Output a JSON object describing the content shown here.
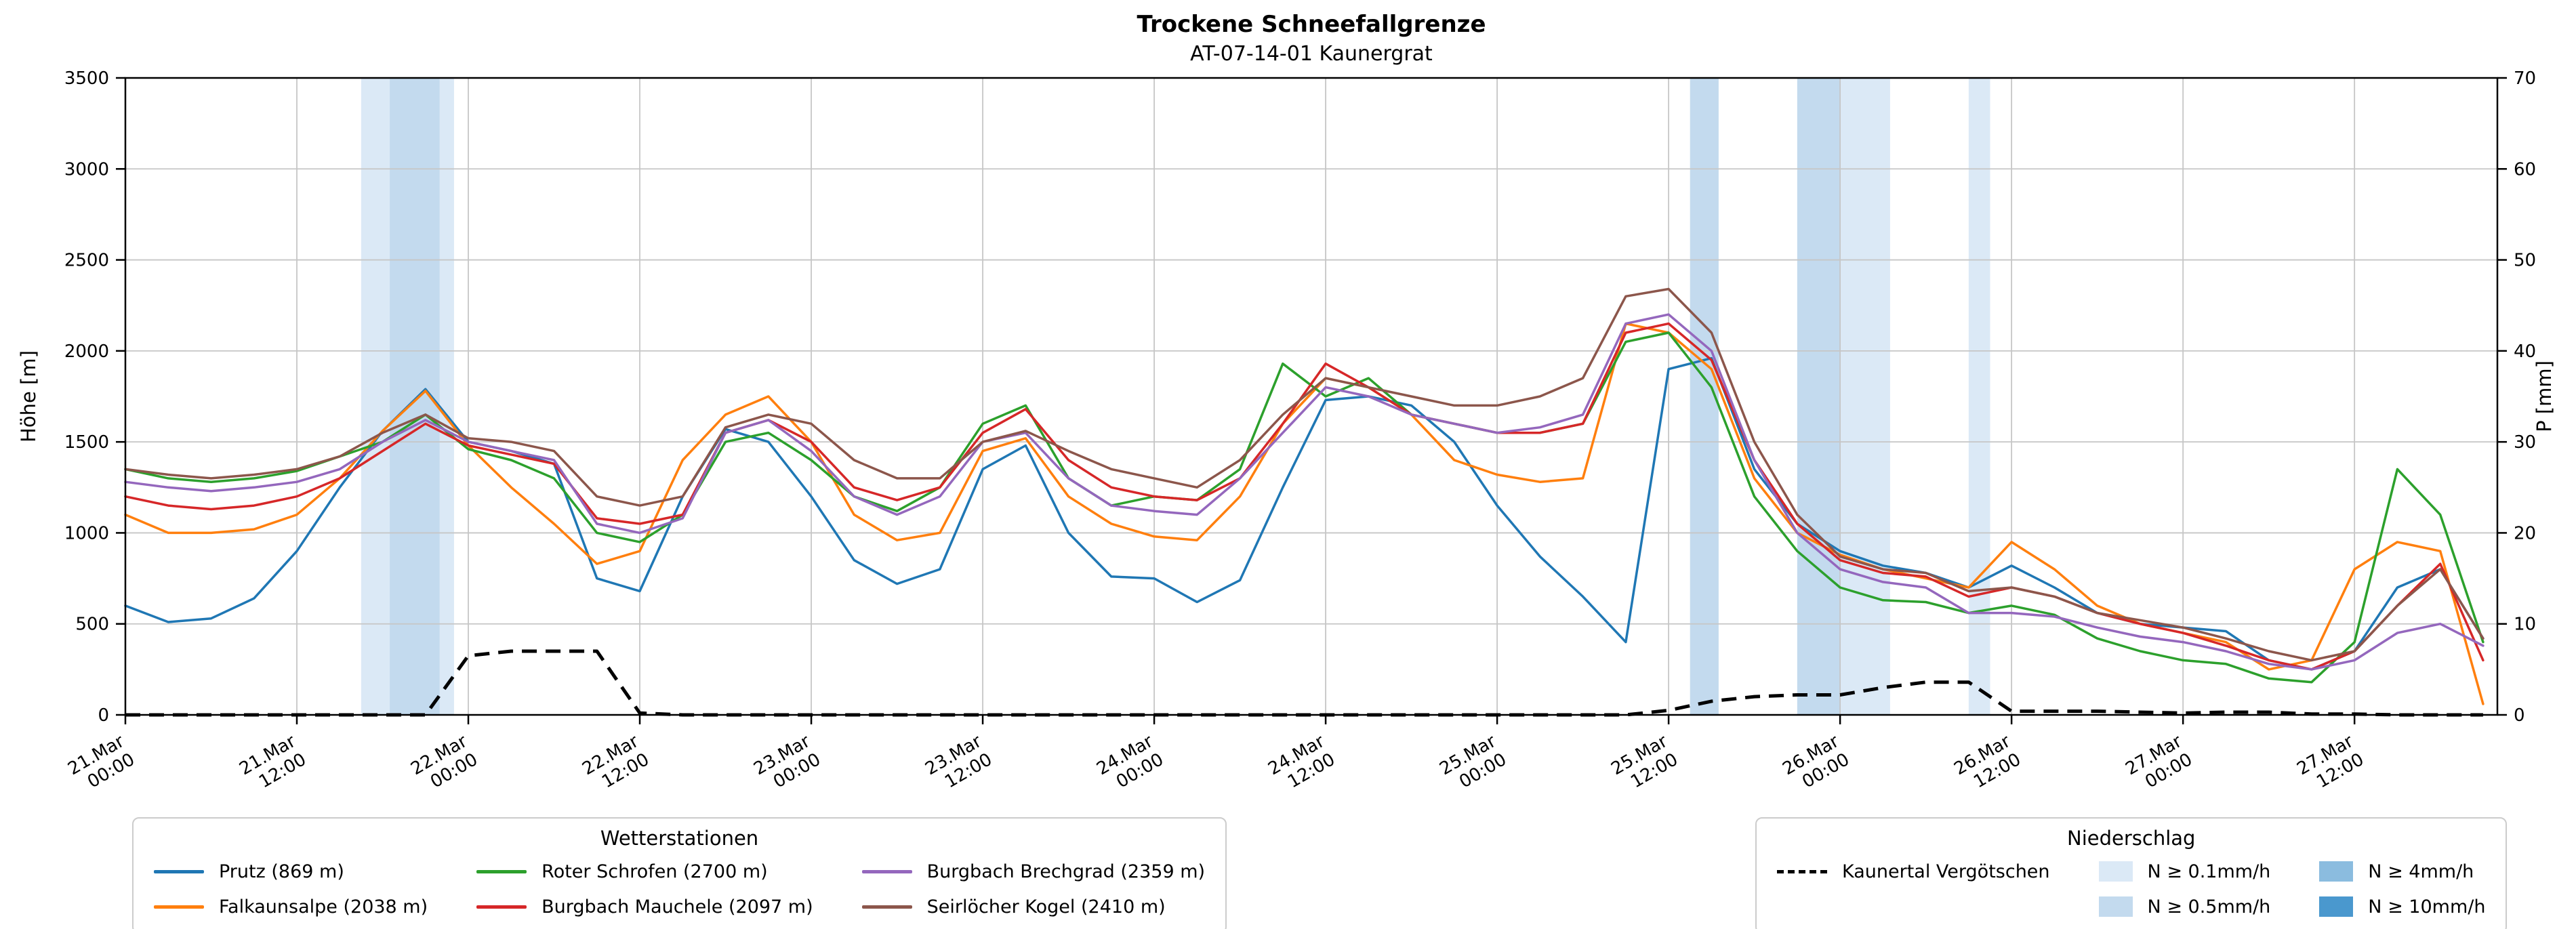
{
  "title": "Trockene Schneefallgrenze",
  "subtitle": "AT-07-14-01 Kaunergrat",
  "chart_data": {
    "type": "line",
    "title": "Trockene Schneefallgrenze",
    "subtitle": "AT-07-14-01 Kaunergrat",
    "ylabel_left": "Höhe [m]",
    "ylabel_right": "P [mm]",
    "xlim": [
      0,
      166
    ],
    "ylim_left": [
      0,
      3500
    ],
    "ylim_right": [
      0,
      70
    ],
    "y_ticks_left": [
      0,
      500,
      1000,
      1500,
      2000,
      2500,
      3000,
      3500
    ],
    "y_ticks_right": [
      0,
      10,
      20,
      30,
      40,
      50,
      60,
      70
    ],
    "x_unit": "hours since 21.Mar 00:00",
    "x_ticks": [
      {
        "t": 0,
        "date": "21.Mar",
        "time": "00:00"
      },
      {
        "t": 12,
        "date": "21.Mar",
        "time": "12:00"
      },
      {
        "t": 24,
        "date": "22.Mar",
        "time": "00:00"
      },
      {
        "t": 36,
        "date": "22.Mar",
        "time": "12:00"
      },
      {
        "t": 48,
        "date": "23.Mar",
        "time": "00:00"
      },
      {
        "t": 60,
        "date": "23.Mar",
        "time": "12:00"
      },
      {
        "t": 72,
        "date": "24.Mar",
        "time": "00:00"
      },
      {
        "t": 84,
        "date": "24.Mar",
        "time": "12:00"
      },
      {
        "t": 96,
        "date": "25.Mar",
        "time": "00:00"
      },
      {
        "t": 108,
        "date": "25.Mar",
        "time": "12:00"
      },
      {
        "t": 120,
        "date": "26.Mar",
        "time": "00:00"
      },
      {
        "t": 132,
        "date": "26.Mar",
        "time": "12:00"
      },
      {
        "t": 144,
        "date": "27.Mar",
        "time": "00:00"
      },
      {
        "t": 156,
        "date": "27.Mar",
        "time": "12:00"
      }
    ],
    "x": [
      0,
      3,
      6,
      9,
      12,
      15,
      18,
      21,
      24,
      27,
      30,
      33,
      36,
      39,
      42,
      45,
      48,
      51,
      54,
      57,
      60,
      63,
      66,
      69,
      72,
      75,
      78,
      81,
      84,
      87,
      90,
      93,
      96,
      99,
      102,
      105,
      108,
      111,
      114,
      117,
      120,
      123,
      126,
      129,
      132,
      135,
      138,
      141,
      144,
      147,
      150,
      153,
      156,
      159,
      162,
      165
    ],
    "series": [
      {
        "id": "prutz",
        "name": "Prutz (869 m)",
        "color": "#1f77b4",
        "axis": "left",
        "values": [
          600,
          510,
          530,
          640,
          900,
          1250,
          1560,
          1790,
          1500,
          1450,
          1380,
          750,
          680,
          1200,
          1570,
          1500,
          1200,
          850,
          720,
          800,
          1350,
          1480,
          1000,
          760,
          750,
          620,
          740,
          1250,
          1730,
          1750,
          1700,
          1500,
          1150,
          870,
          650,
          400,
          1900,
          1960,
          1350,
          1050,
          900,
          820,
          780,
          700,
          820,
          700,
          560,
          500,
          480,
          460,
          300,
          250,
          350,
          700,
          800,
          420
        ]
      },
      {
        "id": "falkaunsalpe",
        "name": "Falkaunsalpe (2038 m)",
        "color": "#ff7f0e",
        "axis": "left",
        "values": [
          1100,
          1000,
          1000,
          1020,
          1100,
          1300,
          1560,
          1780,
          1480,
          1250,
          1050,
          830,
          900,
          1400,
          1650,
          1750,
          1500,
          1100,
          960,
          1000,
          1450,
          1520,
          1200,
          1050,
          980,
          960,
          1200,
          1600,
          1850,
          1800,
          1650,
          1400,
          1320,
          1280,
          1300,
          2150,
          2100,
          1900,
          1300,
          1000,
          880,
          800,
          750,
          700,
          950,
          800,
          600,
          500,
          450,
          400,
          250,
          300,
          800,
          950,
          900,
          60
        ]
      },
      {
        "id": "roter-schrofen",
        "name": "Roter Schrofen (2700 m)",
        "color": "#2ca02c",
        "axis": "left",
        "values": [
          1350,
          1300,
          1280,
          1300,
          1340,
          1420,
          1500,
          1650,
          1460,
          1400,
          1300,
          1000,
          950,
          1100,
          1500,
          1550,
          1400,
          1200,
          1120,
          1250,
          1600,
          1700,
          1300,
          1150,
          1200,
          1180,
          1350,
          1930,
          1750,
          1850,
          1650,
          1600,
          1550,
          1550,
          1600,
          2050,
          2100,
          1800,
          1200,
          900,
          700,
          630,
          620,
          560,
          600,
          550,
          420,
          350,
          300,
          280,
          200,
          180,
          400,
          1350,
          1100,
          400
        ]
      },
      {
        "id": "burgbach-mauchele",
        "name": "Burgbach Mauchele (2097 m)",
        "color": "#d62728",
        "axis": "left",
        "values": [
          1200,
          1150,
          1130,
          1150,
          1200,
          1300,
          1450,
          1600,
          1480,
          1430,
          1380,
          1080,
          1050,
          1100,
          1550,
          1620,
          1500,
          1250,
          1180,
          1250,
          1550,
          1680,
          1400,
          1250,
          1200,
          1180,
          1300,
          1600,
          1930,
          1800,
          1650,
          1600,
          1550,
          1550,
          1600,
          2100,
          2150,
          1950,
          1400,
          1050,
          850,
          780,
          760,
          650,
          700,
          650,
          560,
          500,
          450,
          380,
          300,
          250,
          350,
          600,
          830,
          300
        ]
      },
      {
        "id": "burgbach-brechgrad",
        "name": "Burgbach Brechgrad (2359 m)",
        "color": "#9467bd",
        "axis": "left",
        "values": [
          1280,
          1250,
          1230,
          1250,
          1280,
          1350,
          1500,
          1620,
          1500,
          1450,
          1400,
          1050,
          1000,
          1080,
          1550,
          1620,
          1450,
          1200,
          1100,
          1200,
          1500,
          1550,
          1300,
          1150,
          1120,
          1100,
          1300,
          1550,
          1800,
          1750,
          1650,
          1600,
          1550,
          1580,
          1650,
          2150,
          2200,
          2000,
          1400,
          1000,
          800,
          730,
          700,
          560,
          560,
          540,
          480,
          430,
          400,
          350,
          280,
          250,
          300,
          450,
          500,
          380
        ]
      },
      {
        "id": "seirloecher-kogel",
        "name": "Seirlöcher Kogel (2410 m)",
        "color": "#8c564b",
        "axis": "left",
        "values": [
          1350,
          1320,
          1300,
          1320,
          1350,
          1420,
          1550,
          1650,
          1520,
          1500,
          1450,
          1200,
          1150,
          1200,
          1580,
          1650,
          1600,
          1400,
          1300,
          1300,
          1500,
          1560,
          1450,
          1350,
          1300,
          1250,
          1400,
          1650,
          1850,
          1800,
          1750,
          1700,
          1700,
          1750,
          1850,
          2300,
          2340,
          2100,
          1500,
          1100,
          870,
          800,
          780,
          680,
          700,
          650,
          560,
          520,
          480,
          420,
          350,
          300,
          350,
          600,
          800,
          420
        ]
      }
    ],
    "precip_line": {
      "id": "kaunertal-vergoetschen",
      "name": "Kaunertal Vergötschen",
      "color": "#000000",
      "style": "dashed",
      "axis": "right",
      "values_mm": [
        0,
        0,
        0,
        0,
        0,
        0,
        0,
        0,
        6.5,
        7,
        7,
        7,
        0.2,
        0,
        0,
        0,
        0,
        0,
        0,
        0,
        0,
        0,
        0,
        0,
        0,
        0,
        0,
        0,
        0,
        0,
        0,
        0,
        0,
        0,
        0,
        0,
        0.5,
        1.5,
        2,
        2.2,
        2.2,
        3,
        3.6,
        3.6,
        0.4,
        0.4,
        0.4,
        0.3,
        0.2,
        0.3,
        0.3,
        0.1,
        0.1,
        0,
        0,
        0
      ]
    },
    "precip_bands": [
      {
        "from": 16.5,
        "to": 18.5,
        "level": "0.1"
      },
      {
        "from": 18.5,
        "to": 22,
        "level": "0.5"
      },
      {
        "from": 22,
        "to": 23,
        "level": "0.1"
      },
      {
        "from": 109.5,
        "to": 111.5,
        "level": "0.5"
      },
      {
        "from": 117,
        "to": 120,
        "level": "0.5"
      },
      {
        "from": 120,
        "to": 123.5,
        "level": "0.1"
      },
      {
        "from": 129,
        "to": 130.5,
        "level": "0.1"
      }
    ],
    "band_levels": {
      "0.1": "#dbe9f6",
      "0.5": "#c3daee",
      "4": "#8bbcdf",
      "10": "#4a98ce"
    },
    "grid": true
  },
  "legends": {
    "stations": {
      "title": "Wetterstationen",
      "items": [
        {
          "id": "prutz",
          "label": "Prutz (869 m)",
          "color": "#1f77b4"
        },
        {
          "id": "falkaunsalpe",
          "label": "Falkaunsalpe (2038 m)",
          "color": "#ff7f0e"
        },
        {
          "id": "roter-schrofen",
          "label": "Roter Schrofen (2700 m)",
          "color": "#2ca02c"
        },
        {
          "id": "burgbach-mauchele",
          "label": "Burgbach Mauchele (2097 m)",
          "color": "#d62728"
        },
        {
          "id": "burgbach-brechgrad",
          "label": "Burgbach Brechgrad (2359 m)",
          "color": "#9467bd"
        },
        {
          "id": "seirloecher-kogel",
          "label": "Seirlöcher Kogel (2410 m)",
          "color": "#8c564b"
        }
      ]
    },
    "precip": {
      "title": "Niederschlag",
      "line_item": "Kaunertal Vergötschen",
      "levels": [
        {
          "level": "0.1",
          "label": "N ≥ 0.1mm/h"
        },
        {
          "level": "0.5",
          "label": "N ≥ 0.5mm/h"
        },
        {
          "level": "4",
          "label": "N ≥ 4mm/h"
        },
        {
          "level": "10",
          "label": "N ≥ 10mm/h"
        }
      ]
    }
  }
}
